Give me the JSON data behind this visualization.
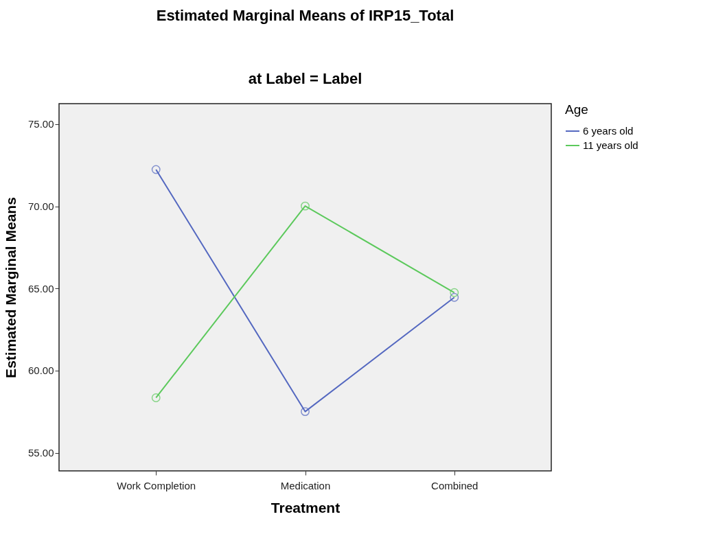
{
  "chart_data": {
    "type": "line",
    "title": "Estimated Marginal Means of IRP15_Total",
    "subtitle": "at Label = Label",
    "xlabel": "Treatment",
    "ylabel": "Estimated Marginal Means",
    "legend_title": "Age",
    "categories": [
      "Work Completion",
      "Medication",
      "Combined"
    ],
    "series": [
      {
        "name": "6 years old",
        "color": "#5468c0",
        "values": [
          72.24,
          57.51,
          64.46
        ]
      },
      {
        "name": "11 years old",
        "color": "#5cc95c",
        "values": [
          58.35,
          70.02,
          64.75
        ]
      }
    ],
    "ylim": [
      53.9,
      76.25
    ],
    "yticks": [
      {
        "value": 55,
        "label": "55.00"
      },
      {
        "value": 60,
        "label": "60.00"
      },
      {
        "value": 65,
        "label": "65.00"
      },
      {
        "value": 70,
        "label": "70.00"
      },
      {
        "value": 75,
        "label": "75.00"
      }
    ],
    "grid": false,
    "legend": "top right",
    "marker": "circle",
    "line_style": "solid"
  }
}
